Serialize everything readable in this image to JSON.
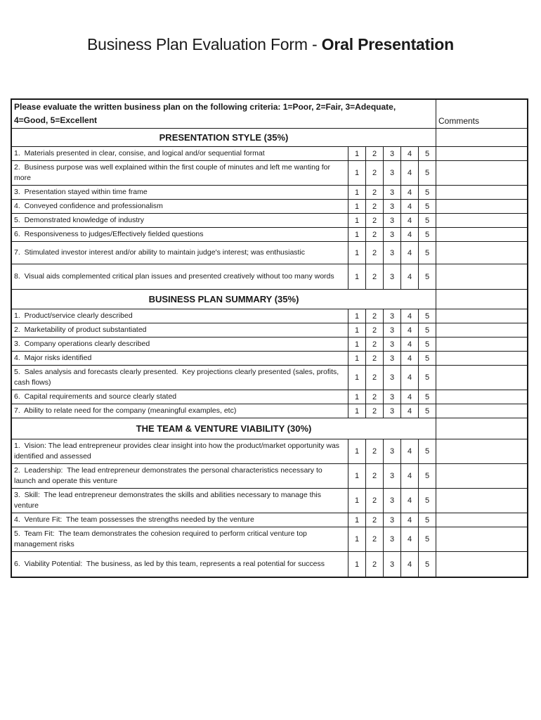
{
  "title": {
    "prefix": "Business Plan Evaluation Form - ",
    "emphasis": "Oral Presentation"
  },
  "table": {
    "instructions": "Please evaluate the written business plan on the following criteria: 1=Poor, 2=Fair, 3=Adequate, 4=Good, 5=Excellent",
    "comments_label": "Comments",
    "rating_scale": [
      "1",
      "2",
      "3",
      "4",
      "5"
    ],
    "sections": [
      {
        "heading": "PRESENTATION STYLE (35%)",
        "rows": [
          "1.  Materials presented in clear, consise, and logical and/or sequential format",
          "2.  Business purpose was well explained within the first couple of minutes and left me wanting for more",
          "3.  Presentation stayed within time frame",
          "4.  Conveyed confidence and professionalism",
          "5.  Demonstrated knowledge of industry",
          "6.  Responsiveness to judges/Effectively fielded questions",
          "7.  Stimulated investor interest and/or ability to maintain judge's interest; was enthusiastic",
          "8.  Visual aids complemented critical plan issues and presented creatively without too many words"
        ]
      },
      {
        "heading": "BUSINESS PLAN SUMMARY (35%)",
        "rows": [
          "1.  Product/service clearly described",
          "2.  Marketability of product substantiated",
          "3.  Company operations clearly described",
          "4.  Major risks identified",
          "5.  Sales analysis and forecasts clearly presented.  Key projections clearly presented (sales, profits, cash flows)",
          "6.  Capital requirements and source clearly stated",
          "7.  Ability to relate need for the company (meaningful examples, etc)"
        ]
      },
      {
        "heading": "THE TEAM & VENTURE VIABILITY (30%)",
        "rows": [
          "1.  Vision: The lead entrepreneur provides clear insight into how the product/market opportunity was identified and assessed",
          "2.  Leadership:  The lead entrepreneur demonstrates the personal characteristics necessary to launch and operate this venture",
          "3.  Skill:  The lead entrepreneur demonstrates the skills and abilities necessary to manage this venture",
          "4.  Venture Fit:  The team possesses the strengths needed by the venture",
          "5.  Team Fit:  The team demonstrates the cohesion required to perform critical venture top management risks",
          "6.  Viability Potential:  The business, as led by this team, represents a real potential for success"
        ]
      }
    ]
  },
  "colors": {
    "background": "#ffffff",
    "text": "#1a1a1a",
    "border": "#1a1a1a"
  }
}
